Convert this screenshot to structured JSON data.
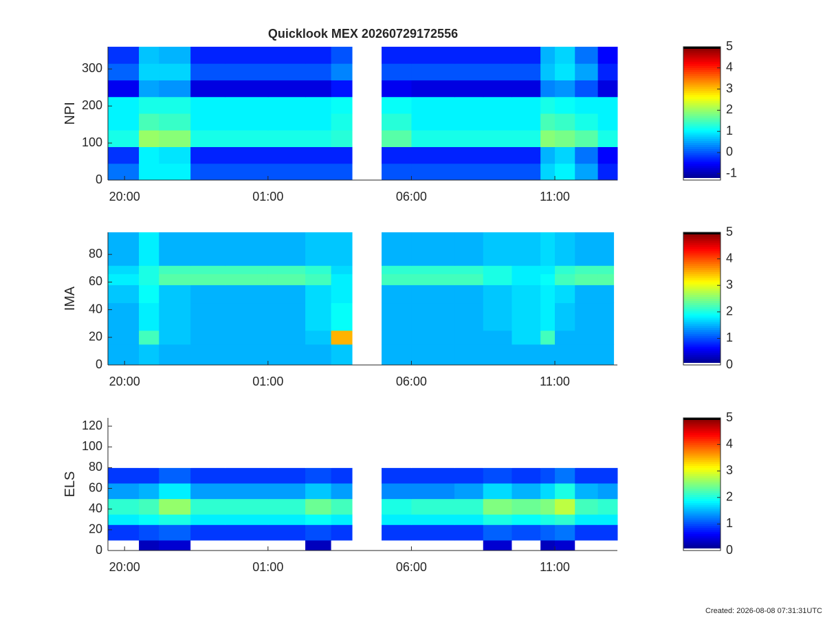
{
  "title": "Quicklook MEX 20260729172556",
  "footer": "Created: 2026-08-08 07:31:31UTC",
  "chart_data": [
    {
      "type": "heatmap",
      "ylabel": "NPI",
      "x_edges": [
        19.42,
        20.5,
        21.2,
        22.3,
        23.5,
        25,
        26.3,
        27.2,
        27.93,
        28.96,
        30,
        31.5,
        32.5,
        33.5,
        34.5,
        35,
        35.7,
        36.5,
        37.18
      ],
      "y_edges": [
        0,
        45,
        90,
        135,
        180,
        225,
        270,
        315,
        360
      ],
      "values": [
        [
          0.2,
          1,
          1,
          0,
          0,
          0,
          0,
          0,
          null,
          0,
          0,
          0,
          0,
          0,
          0.8,
          1,
          0.5,
          -0.3
        ],
        [
          -0.2,
          1,
          0.9,
          -0.3,
          -0.3,
          -0.3,
          -0.3,
          -0.3,
          null,
          -0.3,
          -0.3,
          -0.3,
          -0.3,
          -0.3,
          0.6,
          0.8,
          0.2,
          -0.5
        ],
        [
          1.2,
          2,
          1.9,
          1.2,
          1.2,
          1.2,
          1.2,
          1.3,
          null,
          1.6,
          1.2,
          1.2,
          1.2,
          1.2,
          1.9,
          1.8,
          1.6,
          1.2
        ],
        [
          1,
          1.5,
          1.4,
          1,
          1,
          1,
          1,
          1.2,
          null,
          1.3,
          1,
          1,
          1,
          1,
          1.5,
          1.4,
          1.2,
          1
        ],
        [
          1,
          1.2,
          1.2,
          1,
          1,
          1,
          1,
          1.1,
          null,
          1.1,
          1,
          1,
          1,
          1,
          1.2,
          1.1,
          1,
          1
        ],
        [
          -0.6,
          0.5,
          0.4,
          -0.7,
          -0.7,
          -0.7,
          -0.7,
          -0.4,
          null,
          -0.6,
          -0.7,
          -0.7,
          -0.7,
          -0.7,
          0.3,
          0.4,
          0,
          -0.7
        ],
        [
          0.1,
          0.8,
          0.8,
          0,
          0,
          0,
          0,
          0.3,
          null,
          0,
          0,
          0,
          0,
          0,
          0.7,
          0.9,
          0.5,
          -0.3
        ],
        [
          -0.2,
          0.7,
          0.6,
          -0.3,
          -0.3,
          -0.3,
          -0.3,
          0,
          null,
          -0.3,
          -0.3,
          -0.3,
          -0.3,
          -0.3,
          0.6,
          0.8,
          0.2,
          -0.5
        ]
      ],
      "xlim": [
        19.42,
        37.18
      ],
      "xticks": [
        {
          "value": 20,
          "label": "20:00"
        },
        {
          "value": 25,
          "label": "01:00"
        },
        {
          "value": 30,
          "label": "06:00"
        },
        {
          "value": 35,
          "label": "11:00"
        }
      ],
      "ylim": [
        0,
        360
      ],
      "yticks": [
        0,
        100,
        200,
        300
      ],
      "colorbar": {
        "colormap": "jet",
        "clim": [
          -1.3,
          5
        ],
        "ticks": [
          -1,
          0,
          1,
          2,
          3,
          4,
          5
        ]
      }
    },
    {
      "type": "heatmap",
      "ylabel": "IMA",
      "x_edges": [
        19.42,
        20.5,
        21.2,
        22.3,
        23.5,
        25,
        26.3,
        27.2,
        27.93,
        28.96,
        30,
        31.5,
        32.5,
        33.5,
        34.5,
        35,
        35.7,
        36.5,
        37.05
      ],
      "y_edges": [
        0,
        15,
        25,
        45,
        58,
        66,
        72,
        96
      ],
      "values": [
        [
          1.5,
          1.6,
          1.5,
          1.5,
          1.5,
          1.5,
          1.5,
          1.6,
          null,
          1.5,
          1.5,
          1.5,
          1.5,
          1.5,
          1.5,
          1.5,
          1.5,
          1.5
        ],
        [
          1.5,
          2.2,
          1.6,
          1.5,
          1.5,
          1.5,
          1.6,
          3.5,
          null,
          1.5,
          1.5,
          1.5,
          1.5,
          1.7,
          2.2,
          1.5,
          1.5,
          1.5
        ],
        [
          1.5,
          1.8,
          1.6,
          1.5,
          1.5,
          1.5,
          1.7,
          1.9,
          null,
          1.5,
          1.5,
          1.5,
          1.6,
          1.7,
          1.8,
          1.6,
          1.5,
          1.5
        ],
        [
          1.6,
          1.9,
          1.6,
          1.5,
          1.5,
          1.5,
          1.7,
          1.8,
          null,
          1.5,
          1.5,
          1.5,
          1.6,
          1.7,
          1.8,
          1.7,
          1.5,
          1.5
        ],
        [
          1.8,
          2,
          2.3,
          2.3,
          2.3,
          2.3,
          2.2,
          1.8,
          null,
          2.2,
          2.2,
          2.2,
          2,
          1.8,
          1.9,
          2.2,
          2.3,
          2.3
        ],
        [
          1.7,
          2,
          2.2,
          2.2,
          2.2,
          2.2,
          2.1,
          1.7,
          null,
          2.1,
          2.1,
          2.1,
          2,
          1.8,
          1.8,
          2.1,
          2.2,
          2.2
        ],
        [
          1.5,
          1.8,
          1.5,
          1.5,
          1.5,
          1.5,
          1.6,
          1.6,
          null,
          1.5,
          1.5,
          1.5,
          1.6,
          1.6,
          1.7,
          1.6,
          1.5,
          1.5
        ]
      ],
      "xlim": [
        19.42,
        37.18
      ],
      "xticks": [
        {
          "value": 20,
          "label": "20:00"
        },
        {
          "value": 25,
          "label": "01:00"
        },
        {
          "value": 30,
          "label": "06:00"
        },
        {
          "value": 35,
          "label": "11:00"
        }
      ],
      "ylim": [
        0,
        96
      ],
      "yticks": [
        0,
        20,
        40,
        60,
        80
      ],
      "colorbar": {
        "colormap": "jet",
        "clim": [
          0,
          5
        ],
        "ticks": [
          0,
          1,
          2,
          3,
          4,
          5
        ]
      }
    },
    {
      "type": "heatmap",
      "ylabel": "ELS",
      "x_edges": [
        19.42,
        20.5,
        21.2,
        22.3,
        23.5,
        25,
        26.3,
        27.2,
        27.93,
        28.96,
        30,
        31.5,
        32.5,
        33.5,
        34.5,
        35,
        35.7,
        36.5,
        37.18
      ],
      "y_edges": [
        0,
        10,
        25,
        35,
        50,
        65,
        80,
        128
      ],
      "values": [
        [
          -0.1,
          0.3,
          0.4,
          -0.1,
          -0.1,
          -0.1,
          0.3,
          -0.1,
          null,
          -0.1,
          -0.1,
          -0.1,
          0.4,
          -0.1,
          0.3,
          0.4,
          -0.1,
          -0.1
        ],
        [
          0.9,
          1,
          1.1,
          0.9,
          0.9,
          0.9,
          1,
          0.9,
          null,
          0.9,
          0.9,
          0.9,
          1.1,
          1,
          1.1,
          1.2,
          0.9,
          0.9
        ],
        [
          1.8,
          1.9,
          2,
          1.8,
          1.8,
          1.8,
          1.9,
          1.8,
          null,
          1.8,
          1.8,
          1.8,
          2,
          1.9,
          2,
          2.1,
          1.8,
          1.8
        ],
        [
          2.1,
          2.2,
          2.6,
          2.1,
          2.1,
          2.1,
          2.4,
          2.2,
          null,
          2,
          2.1,
          2.1,
          2.5,
          2.4,
          2.5,
          2.8,
          2.2,
          2.1
        ],
        [
          1.4,
          1.5,
          1.8,
          1.4,
          1.4,
          1.4,
          1.6,
          1.4,
          null,
          1.3,
          1.3,
          1.4,
          1.7,
          1.5,
          1.7,
          2,
          1.5,
          1.4
        ],
        [
          0.9,
          0.9,
          1.1,
          0.9,
          0.9,
          0.9,
          1,
          0.9,
          null,
          0.9,
          0.9,
          0.9,
          1,
          0.9,
          1,
          1.2,
          0.9,
          0.9
        ],
        [
          -0.1,
          -0.1,
          -0.1,
          -0.1,
          -0.1,
          -0.1,
          -0.1,
          -0.1,
          null,
          -0.1,
          -0.1,
          -0.1,
          -0.1,
          -0.1,
          -0.1,
          -0.1,
          -0.1,
          -0.1
        ]
      ],
      "xlim": [
        19.42,
        37.18
      ],
      "xticks": [
        {
          "value": 20,
          "label": "20:00"
        },
        {
          "value": 25,
          "label": "01:00"
        },
        {
          "value": 30,
          "label": "06:00"
        },
        {
          "value": 35,
          "label": "11:00"
        }
      ],
      "ylim": [
        0,
        128
      ],
      "yticks": [
        0,
        20,
        40,
        60,
        80,
        100,
        120
      ],
      "colorbar": {
        "colormap": "jet",
        "clim": [
          0,
          5
        ],
        "ticks": [
          0,
          1,
          2,
          3,
          4,
          5
        ]
      }
    }
  ]
}
